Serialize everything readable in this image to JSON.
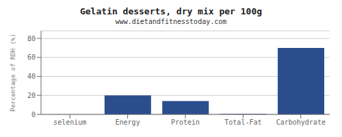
{
  "chart_data": {
    "type": "bar",
    "title": "Gelatin desserts, dry mix per 100g",
    "subtitle": "www.dietandfitnesstoday.com",
    "categories": [
      "selenium",
      "Energy",
      "Protein",
      "Total-Fat",
      "Carbohydrate"
    ],
    "values": [
      0,
      20,
      14,
      0.5,
      70
    ],
    "color": "#2b4d8e",
    "ylabel": "Percentage of RDH (%)",
    "ylim": [
      0,
      88
    ],
    "yticks": [
      0,
      20,
      40,
      60,
      80
    ],
    "grid": true
  }
}
